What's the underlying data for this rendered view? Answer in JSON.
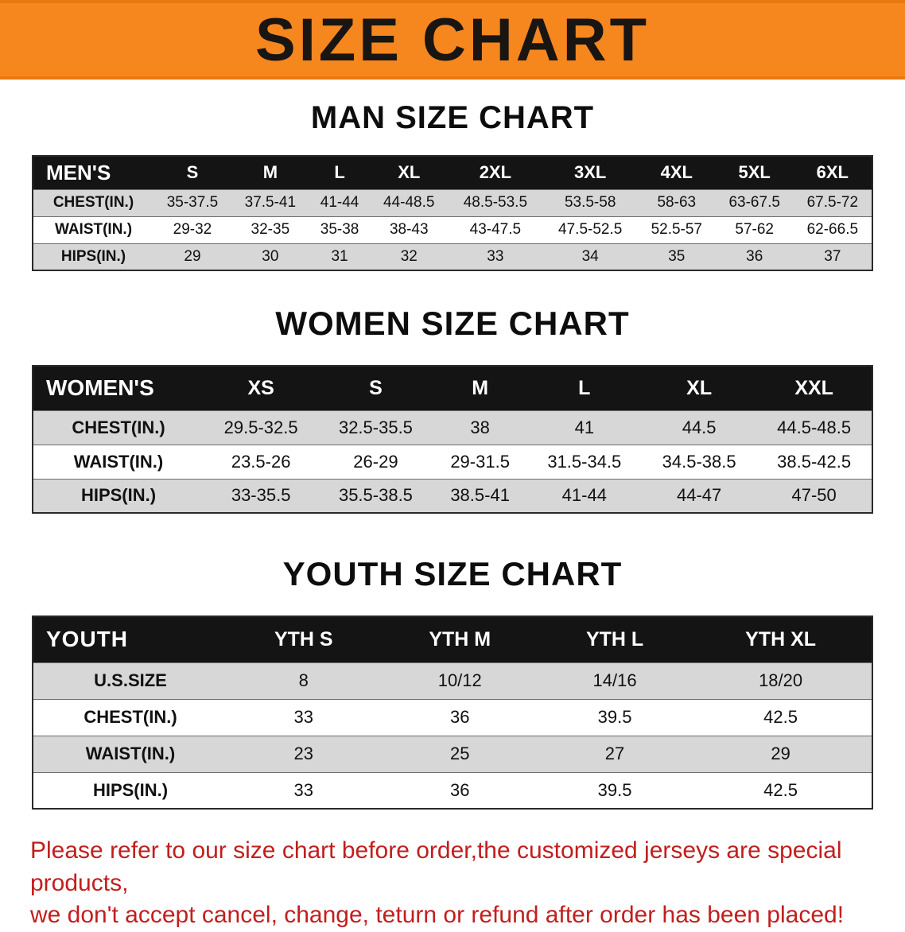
{
  "banner": {
    "title": "SIZE CHART",
    "bg_color": "#F6861E",
    "text_color": "#181512"
  },
  "colors": {
    "header_row_bg": "#141414",
    "stripe_bg": "#D7D7D7"
  },
  "sections": [
    {
      "id": "men",
      "heading": "MAN SIZE CHART",
      "table": {
        "header": [
          "MEN'S",
          "S",
          "M",
          "L",
          "XL",
          "2XL",
          "3XL",
          "4XL",
          "5XL",
          "6XL"
        ],
        "rows": [
          [
            "CHEST(IN.)",
            "35-37.5",
            "37.5-41",
            "41-44",
            "44-48.5",
            "48.5-53.5",
            "53.5-58",
            "58-63",
            "63-67.5",
            "67.5-72"
          ],
          [
            "WAIST(IN.)",
            "29-32",
            "32-35",
            "35-38",
            "38-43",
            "43-47.5",
            "47.5-52.5",
            "52.5-57",
            "57-62",
            "62-66.5"
          ],
          [
            "HIPS(IN.)",
            "29",
            "30",
            "31",
            "32",
            "33",
            "34",
            "35",
            "36",
            "37"
          ]
        ]
      }
    },
    {
      "id": "women",
      "heading": "WOMEN SIZE CHART",
      "table": {
        "header": [
          "WOMEN'S",
          "XS",
          "S",
          "M",
          "L",
          "XL",
          "XXL"
        ],
        "rows": [
          [
            "CHEST(IN.)",
            "29.5-32.5",
            "32.5-35.5",
            "38",
            "41",
            "44.5",
            "44.5-48.5"
          ],
          [
            "WAIST(IN.)",
            "23.5-26",
            "26-29",
            "29-31.5",
            "31.5-34.5",
            "34.5-38.5",
            "38.5-42.5"
          ],
          [
            "HIPS(IN.)",
            "33-35.5",
            "35.5-38.5",
            "38.5-41",
            "41-44",
            "44-47",
            "47-50"
          ]
        ]
      }
    },
    {
      "id": "youth",
      "heading": "YOUTH SIZE CHART",
      "table": {
        "header": [
          "YOUTH",
          "YTH S",
          "YTH M",
          "YTH L",
          "YTH XL"
        ],
        "rows": [
          [
            "U.S.SIZE",
            "8",
            "10/12",
            "14/16",
            "18/20"
          ],
          [
            "CHEST(IN.)",
            "33",
            "36",
            "39.5",
            "42.5"
          ],
          [
            "WAIST(IN.)",
            "23",
            "25",
            "27",
            "29"
          ],
          [
            "HIPS(IN.)",
            "33",
            "36",
            "39.5",
            "42.5"
          ]
        ]
      }
    }
  ],
  "footer": {
    "lines": [
      "Please refer to our size chart before order,the customized jerseys are special products,",
      "we don't accept cancel, change, teturn or refund after order has been placed!"
    ],
    "text_color": "#C21E1E"
  }
}
